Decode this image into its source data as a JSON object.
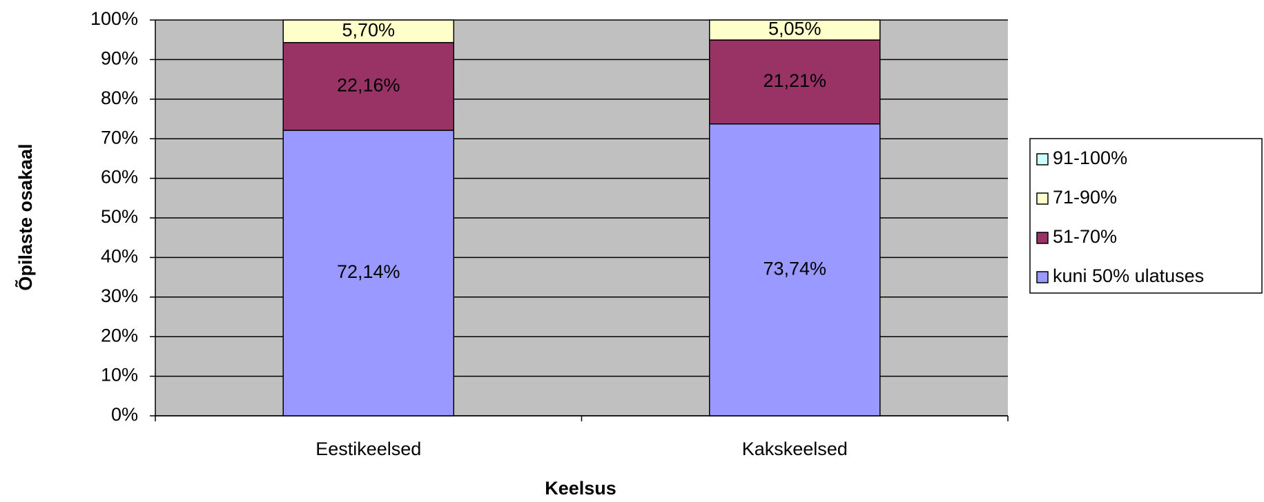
{
  "chart_data": {
    "type": "stacked_bar",
    "xlabel": "Keelsus",
    "ylabel": "Õpilaste osakaal",
    "categories": [
      "Eestikeelsed",
      "Kakskeelsed"
    ],
    "series": [
      {
        "name": "kuni 50% ulatuses",
        "color": "#9999ff",
        "values": [
          72.14,
          73.74
        ],
        "value_labels": [
          "72,14%",
          "73,74%"
        ]
      },
      {
        "name": "51-70%",
        "color": "#993366",
        "values": [
          22.16,
          21.21
        ],
        "value_labels": [
          "22,16%",
          "21,21%"
        ]
      },
      {
        "name": "71-90%",
        "color": "#ffffcc",
        "values": [
          5.7,
          5.05
        ],
        "value_labels": [
          "5,70%",
          "5,05%"
        ]
      },
      {
        "name": "91-100%",
        "color": "#ccffff",
        "values": [
          0,
          0
        ]
      }
    ],
    "ylim": [
      0,
      100
    ],
    "yticks": [
      {
        "value": 0,
        "label": "0%"
      },
      {
        "value": 10,
        "label": "10%"
      },
      {
        "value": 20,
        "label": "20%"
      },
      {
        "value": 30,
        "label": "30%"
      },
      {
        "value": 40,
        "label": "40%"
      },
      {
        "value": 50,
        "label": "50%"
      },
      {
        "value": 60,
        "label": "60%"
      },
      {
        "value": 70,
        "label": "70%"
      },
      {
        "value": 80,
        "label": "80%"
      },
      {
        "value": 90,
        "label": "90%"
      },
      {
        "value": 100,
        "label": "100%"
      }
    ],
    "grid": true,
    "legend": "right"
  }
}
